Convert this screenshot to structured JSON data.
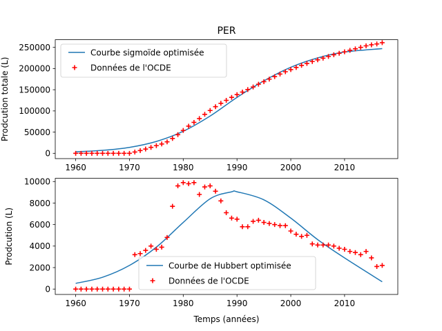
{
  "figure": {
    "suptitle": "PER",
    "xlabel": "Temps (années)"
  },
  "colors": {
    "curve": "#1f77b4",
    "points": "#ff0000",
    "axes": "#000000"
  },
  "chart_data": [
    {
      "type": "line+scatter",
      "title": "PER",
      "xlabel": "",
      "ylabel": "Prodcution totale (L)",
      "xlim": [
        1956.2,
        2019.9
      ],
      "ylim": [
        -12500,
        268000
      ],
      "xticks": [
        1960,
        1970,
        1980,
        1990,
        2000,
        2010
      ],
      "yticks": [
        0,
        50000,
        100000,
        150000,
        200000,
        250000
      ],
      "legend": {
        "position": "top-left",
        "entries": [
          "Courbe sigmoïde optimisée",
          "Données de l'OCDE"
        ]
      },
      "series": [
        {
          "name": "Courbe sigmoïde optimisée",
          "kind": "line",
          "x": [
            1960,
            1965,
            1970,
            1975,
            1980,
            1985,
            1990,
            1995,
            2000,
            2005,
            2010,
            2017
          ],
          "y": [
            3500,
            7000,
            14000,
            28000,
            52000,
            88000,
            132000,
            171000,
            203000,
            225000,
            239000,
            247000
          ]
        },
        {
          "name": "Données de l'OCDE",
          "kind": "scatter",
          "x": [
            1960,
            1961,
            1962,
            1963,
            1964,
            1965,
            1966,
            1967,
            1968,
            1969,
            1970,
            1971,
            1972,
            1973,
            1974,
            1975,
            1976,
            1977,
            1978,
            1979,
            1980,
            1981,
            1982,
            1983,
            1984,
            1985,
            1986,
            1987,
            1988,
            1989,
            1990,
            1991,
            1992,
            1993,
            1994,
            1995,
            1996,
            1997,
            1998,
            1999,
            2000,
            2001,
            2002,
            2003,
            2004,
            2005,
            2006,
            2007,
            2008,
            2009,
            2010,
            2011,
            2012,
            2013,
            2014,
            2015,
            2016,
            2017
          ],
          "y": [
            0,
            0,
            0,
            0,
            0,
            0,
            0,
            0,
            0,
            0,
            0,
            3000,
            6500,
            10000,
            14000,
            18000,
            22000,
            27000,
            35000,
            44000,
            54000,
            64000,
            73000,
            82000,
            92000,
            101000,
            110000,
            118000,
            125000,
            132000,
            138500,
            144500,
            150500,
            156500,
            163000,
            169000,
            175000,
            181000,
            187000,
            192500,
            197500,
            202500,
            207500,
            212000,
            216500,
            220500,
            224500,
            228500,
            232500,
            236000,
            239500,
            243000,
            246500,
            250000,
            253500,
            256000,
            258000,
            261000
          ]
        }
      ]
    },
    {
      "type": "line+scatter",
      "title": "",
      "xlabel": "Temps (années)",
      "ylabel": "Prodcution (L)",
      "xlim": [
        1956.2,
        2019.9
      ],
      "ylim": [
        -500,
        10300
      ],
      "xticks": [
        1960,
        1970,
        1980,
        1990,
        2000,
        2010
      ],
      "yticks": [
        0,
        2000,
        4000,
        6000,
        8000,
        10000
      ],
      "legend": {
        "position": "bottom-center",
        "entries": [
          "Courbe de Hubbert optimisée",
          "Données de l'OCDE"
        ]
      },
      "series": [
        {
          "name": "Courbe de Hubbert optimisée",
          "kind": "line",
          "x": [
            1960,
            1965,
            1970,
            1975,
            1980,
            1985,
            1989,
            1990,
            1995,
            2000,
            2005,
            2010,
            2017
          ],
          "y": [
            530,
            1100,
            2200,
            3900,
            6200,
            8400,
            9050,
            9050,
            8300,
            6600,
            4600,
            2900,
            680
          ]
        },
        {
          "name": "Données de l'OCDE",
          "kind": "scatter",
          "x": [
            1960,
            1961,
            1962,
            1963,
            1964,
            1965,
            1966,
            1967,
            1968,
            1969,
            1970,
            1971,
            1972,
            1973,
            1974,
            1975,
            1976,
            1977,
            1978,
            1979,
            1980,
            1981,
            1982,
            1983,
            1984,
            1985,
            1986,
            1987,
            1988,
            1989,
            1990,
            1991,
            1992,
            1993,
            1994,
            1995,
            1996,
            1997,
            1998,
            1999,
            2000,
            2001,
            2002,
            2003,
            2004,
            2005,
            2006,
            2007,
            2008,
            2009,
            2010,
            2011,
            2012,
            2013,
            2014,
            2015,
            2016,
            2017
          ],
          "y": [
            0,
            0,
            0,
            0,
            0,
            0,
            0,
            0,
            0,
            0,
            0,
            3200,
            3300,
            3600,
            4000,
            3700,
            3900,
            4800,
            7700,
            9600,
            9900,
            9800,
            9900,
            8800,
            9500,
            9600,
            9100,
            8200,
            7100,
            6600,
            6500,
            5800,
            5800,
            6300,
            6400,
            6200,
            6100,
            6000,
            5900,
            5900,
            5400,
            5100,
            4900,
            5000,
            4200,
            4100,
            4100,
            4100,
            4000,
            3800,
            3700,
            3500,
            3400,
            3200,
            3500,
            2900,
            2100,
            2200
          ]
        }
      ]
    }
  ]
}
